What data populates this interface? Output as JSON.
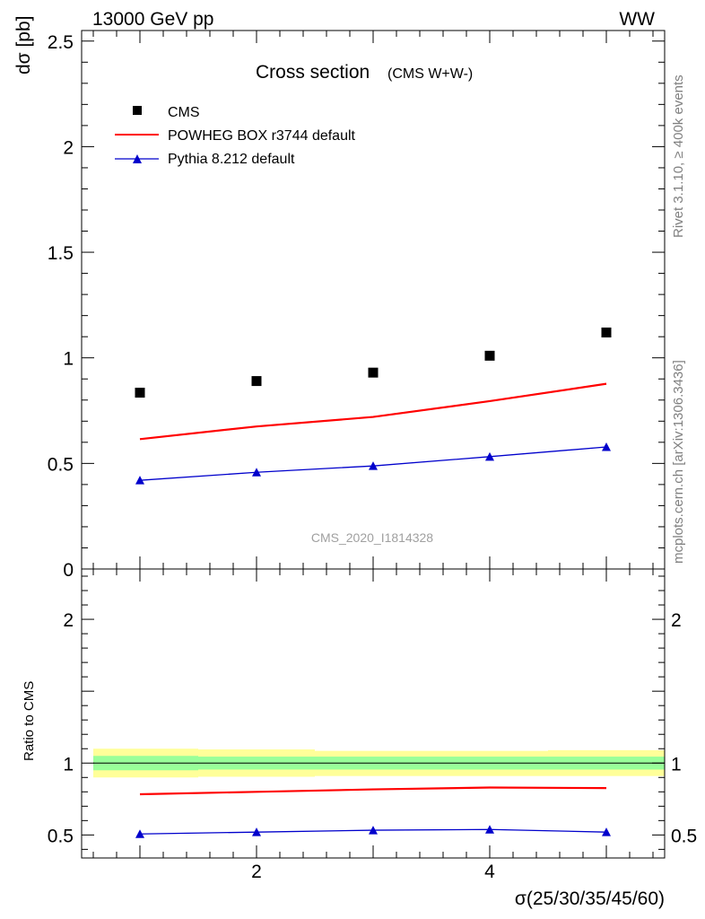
{
  "header": {
    "energy_label": "13000 GeV pp",
    "process_label": "WW"
  },
  "side_labels": {
    "rivet": "Rivet 3.1.10, ≥ 400k events",
    "mcplots": "mcplots.cern.ch [arXiv:1306.3436]"
  },
  "chart_data": [
    {
      "type": "scatter",
      "panel": "main",
      "title_main": "Cross section",
      "title_sub": "(CMS W+W-)",
      "watermark": "CMS_2020_I1814328",
      "ylabel": "dσ [pb]",
      "xlabel": "σ(25/30/35/45/60)",
      "xlim": [
        0.5,
        5.5
      ],
      "ylim": [
        0,
        2.55
      ],
      "y_ticks": [
        0,
        0.5,
        1,
        1.5,
        2,
        2.5
      ],
      "y_tick_labels": [
        "0",
        "0.5",
        "1",
        "1.5",
        "2",
        "2.5"
      ],
      "x_ticks": [
        2,
        4
      ],
      "x_tick_labels": [
        "2",
        "4"
      ],
      "legend_position": "top-left",
      "series": [
        {
          "name": "CMS",
          "kind": "markers-square",
          "color": "#000000",
          "x": [
            1,
            2,
            3,
            4,
            5
          ],
          "values": [
            0.835,
            0.89,
            0.93,
            1.01,
            1.12
          ]
        },
        {
          "name": "POWHEG BOX r3744 default",
          "kind": "line",
          "color": "#ff0000",
          "x": [
            1,
            2,
            3,
            4,
            5
          ],
          "values": [
            0.615,
            0.675,
            0.72,
            0.795,
            0.877
          ]
        },
        {
          "name": "Pythia 8.212 default",
          "kind": "line-triangles",
          "color": "#0000cc",
          "x": [
            1,
            2,
            3,
            4,
            5
          ],
          "values": [
            0.42,
            0.458,
            0.488,
            0.532,
            0.578
          ]
        }
      ]
    },
    {
      "type": "line",
      "panel": "ratio",
      "ylabel": "Ratio to CMS",
      "xlim": [
        0.5,
        5.5
      ],
      "ylim": [
        0.34,
        2.35
      ],
      "y_ticks": [
        0.5,
        1,
        2
      ],
      "y_tick_labels": [
        "0.5",
        "1",
        "2"
      ],
      "bands": {
        "bins": [
          [
            0.6,
            1.5
          ],
          [
            1.5,
            2.5
          ],
          [
            2.5,
            3.5
          ],
          [
            3.5,
            4.5
          ],
          [
            4.5,
            5.5
          ]
        ],
        "yellow": [
          [
            0.9,
            1.1
          ],
          [
            0.905,
            1.095
          ],
          [
            0.91,
            1.085
          ],
          [
            0.91,
            1.085
          ],
          [
            0.91,
            1.09
          ]
        ],
        "green": [
          [
            0.95,
            1.05
          ],
          [
            0.955,
            1.045
          ],
          [
            0.955,
            1.045
          ],
          [
            0.955,
            1.045
          ],
          [
            0.955,
            1.045
          ]
        ],
        "yellow_color": "#ffff99",
        "green_color": "#99ff99"
      },
      "series": [
        {
          "name": "POWHEG BOX r3744 default",
          "kind": "line",
          "color": "#ff0000",
          "x": [
            1,
            2,
            3,
            4,
            5
          ],
          "values": [
            0.783,
            0.8,
            0.817,
            0.83,
            0.826
          ]
        },
        {
          "name": "Pythia 8.212 default",
          "kind": "line-triangles",
          "color": "#0000cc",
          "x": [
            1,
            2,
            3,
            4,
            5
          ],
          "values": [
            0.507,
            0.52,
            0.533,
            0.538,
            0.52
          ]
        }
      ]
    }
  ]
}
